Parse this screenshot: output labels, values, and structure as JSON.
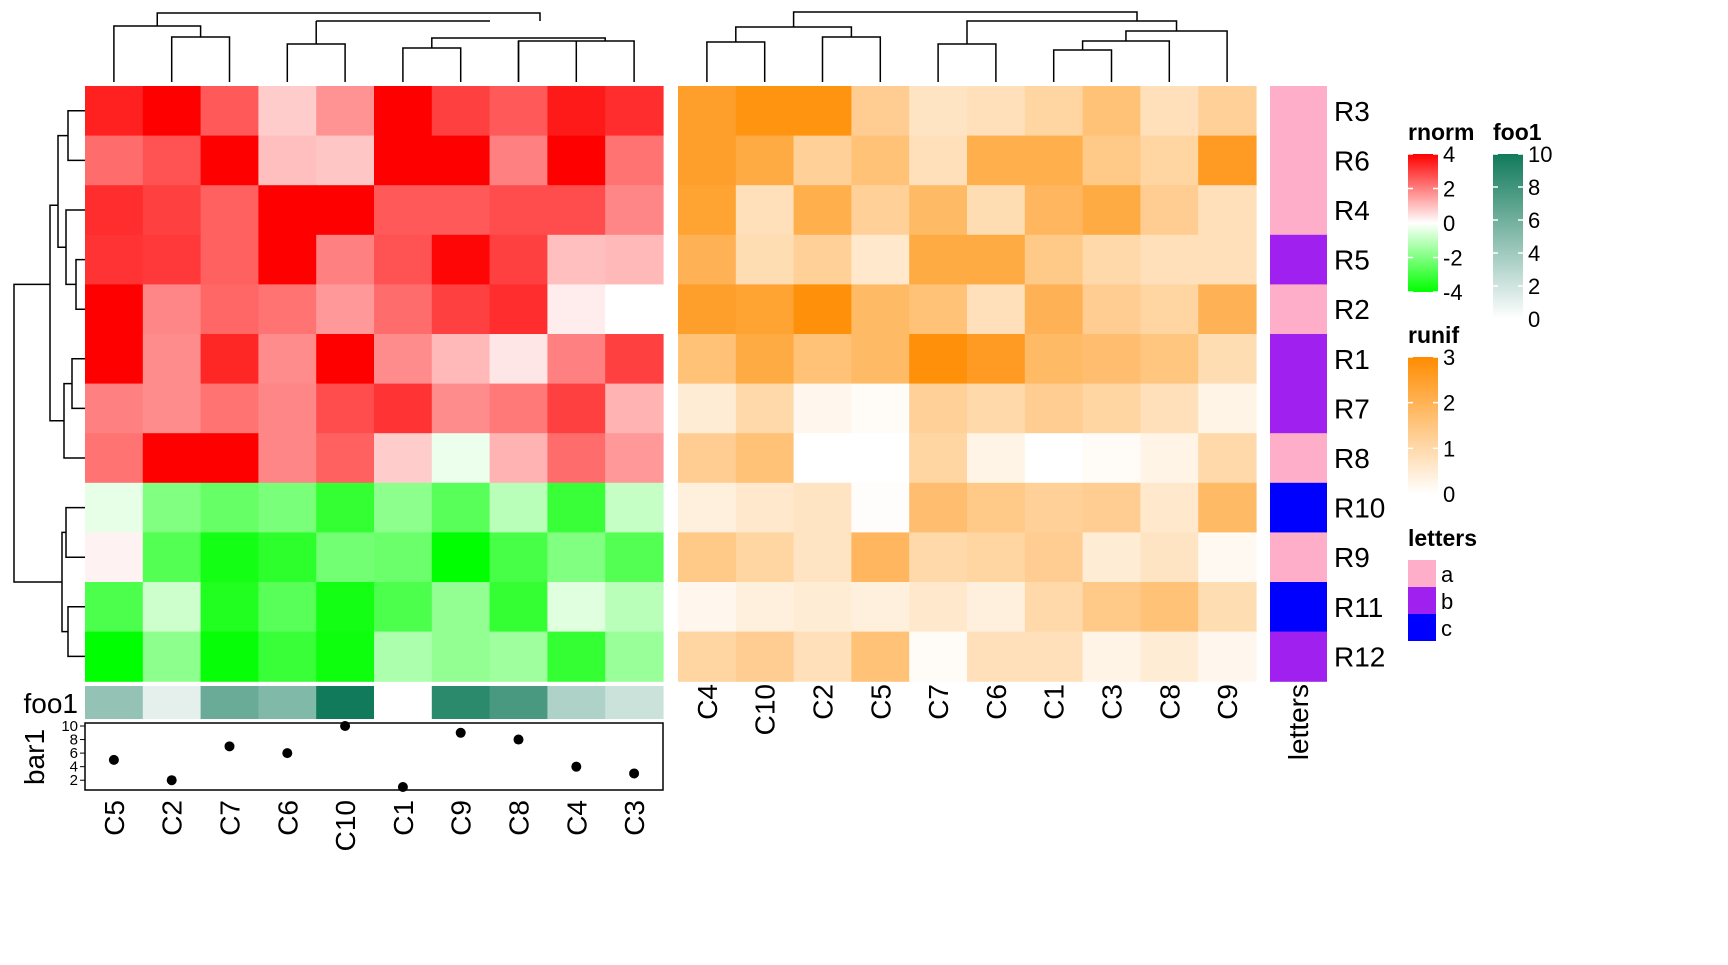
{
  "chart_data": {
    "type": "heatmap",
    "rows": [
      "R3",
      "R6",
      "R4",
      "R5",
      "R2",
      "R1",
      "R7",
      "R8",
      "R10",
      "R9",
      "R11",
      "R12"
    ],
    "heatmaps": [
      {
        "name": "rnorm",
        "columns": [
          "C5",
          "C2",
          "C7",
          "C6",
          "C10",
          "C1",
          "C9",
          "C8",
          "C4",
          "C3"
        ],
        "values": [
          [
            3.5,
            4.0,
            2.6,
            0.8,
            1.7,
            4.0,
            3.0,
            2.6,
            3.6,
            3.3
          ],
          [
            2.3,
            2.7,
            4.0,
            1.0,
            0.9,
            4.0,
            4.0,
            2.0,
            4.0,
            2.2
          ],
          [
            3.3,
            3.0,
            2.5,
            4.0,
            4.0,
            2.6,
            2.6,
            2.8,
            2.8,
            1.9
          ],
          [
            3.2,
            3.1,
            2.5,
            4.0,
            2.0,
            2.7,
            3.9,
            3.0,
            1.0,
            1.1
          ],
          [
            4.0,
            1.9,
            2.4,
            2.2,
            1.6,
            2.3,
            3.0,
            3.3,
            0.3,
            0.0
          ],
          [
            4.0,
            1.8,
            3.4,
            1.8,
            4.0,
            1.8,
            1.1,
            0.4,
            2.0,
            3.0
          ],
          [
            2.0,
            1.8,
            2.2,
            1.9,
            2.8,
            3.2,
            1.8,
            2.1,
            3.0,
            1.2
          ],
          [
            2.2,
            4.0,
            4.0,
            1.9,
            2.5,
            0.8,
            -0.3,
            1.2,
            2.3,
            1.6
          ],
          [
            -0.4,
            -2.0,
            -2.4,
            -2.1,
            -3.2,
            -1.8,
            -2.6,
            -1.1,
            -3.1,
            -0.9
          ],
          [
            0.2,
            -2.7,
            -3.7,
            -3.3,
            -2.2,
            -2.3,
            -4.0,
            -2.9,
            -2.0,
            -2.7
          ],
          [
            -2.8,
            -0.8,
            -3.5,
            -2.6,
            -3.7,
            -2.8,
            -1.7,
            -3.2,
            -0.5,
            -1.1
          ],
          [
            -4.0,
            -1.8,
            -3.9,
            -3.1,
            -3.8,
            -1.3,
            -1.7,
            -1.5,
            -3.2,
            -1.6
          ]
        ]
      },
      {
        "name": "runif",
        "columns": [
          "C4",
          "C10",
          "C2",
          "C5",
          "C7",
          "C6",
          "C1",
          "C3",
          "C8",
          "C9"
        ],
        "values": [
          [
            2.5,
            2.8,
            2.8,
            1.3,
            0.7,
            0.8,
            1.1,
            1.6,
            0.8,
            1.2
          ],
          [
            2.5,
            2.2,
            1.2,
            1.6,
            0.8,
            2.1,
            2.1,
            1.4,
            1.1,
            2.6
          ],
          [
            2.4,
            0.8,
            2.1,
            1.2,
            1.8,
            0.9,
            1.9,
            2.2,
            1.3,
            0.8
          ],
          [
            2.0,
            0.9,
            1.2,
            0.6,
            2.2,
            2.2,
            1.4,
            1.0,
            0.8,
            0.8
          ],
          [
            2.5,
            2.4,
            2.9,
            1.8,
            1.6,
            0.8,
            2.0,
            1.3,
            1.1,
            2.0
          ],
          [
            1.6,
            2.2,
            1.6,
            1.8,
            2.9,
            2.6,
            1.8,
            1.7,
            1.5,
            0.9
          ],
          [
            0.5,
            1.0,
            0.2,
            0.1,
            1.2,
            1.0,
            1.3,
            1.1,
            0.8,
            0.3
          ],
          [
            1.3,
            1.6,
            0.0,
            0.0,
            1.1,
            0.3,
            0.0,
            0.1,
            0.3,
            1.0
          ],
          [
            0.4,
            0.6,
            0.7,
            0.05,
            1.7,
            1.4,
            1.2,
            1.3,
            0.6,
            1.8
          ],
          [
            1.4,
            1.1,
            0.7,
            1.9,
            1.0,
            1.1,
            1.3,
            0.5,
            0.7,
            0.15
          ],
          [
            0.2,
            0.4,
            0.5,
            0.4,
            0.6,
            0.4,
            1.0,
            1.4,
            1.6,
            0.9
          ],
          [
            1.1,
            1.3,
            0.8,
            1.6,
            0.1,
            0.8,
            0.8,
            0.3,
            0.5,
            0.2
          ]
        ]
      }
    ],
    "row_annotation": {
      "name": "letters",
      "values": [
        "a",
        "a",
        "a",
        "b",
        "a",
        "b",
        "b",
        "a",
        "c",
        "a",
        "c",
        "b"
      ],
      "colors": {
        "a": "#ffaec9",
        "b": "#a020f0",
        "c": "#0000ff"
      }
    },
    "column_annotations": {
      "columns": [
        "C5",
        "C2",
        "C7",
        "C6",
        "C10",
        "C1",
        "C9",
        "C8",
        "C4",
        "C3"
      ],
      "foo1": [
        4.5,
        1.1,
        6.3,
        5.3,
        10.0,
        0.0,
        8.9,
        7.7,
        3.4,
        2.2
      ],
      "bar1": [
        5,
        2,
        7,
        6,
        10,
        1,
        9,
        8,
        4,
        3
      ],
      "bar1_ylim": [
        1,
        10
      ],
      "bar1_ticks": [
        "2",
        "4",
        "6",
        "8",
        "10"
      ]
    },
    "legends": [
      {
        "title": "rnorm",
        "ticks": [
          "4",
          "2",
          "0",
          "-2",
          "-4"
        ],
        "colors": [
          "#ff0000",
          "#ffffff",
          "#00ff00"
        ],
        "range": [
          -4,
          4
        ]
      },
      {
        "title": "foo1",
        "ticks": [
          "10",
          "8",
          "6",
          "4",
          "2",
          "0"
        ],
        "colors": [
          "#ffffff",
          "#117a5a"
        ],
        "range": [
          0,
          10
        ]
      },
      {
        "title": "runif",
        "ticks": [
          "3",
          "2",
          "1",
          "0"
        ],
        "colors": [
          "#ffffff",
          "#ff8c00"
        ],
        "range": [
          0,
          3
        ]
      },
      {
        "title": "letters",
        "ticks": [
          "a",
          "b",
          "c"
        ],
        "colors": [
          "#ffaec9",
          "#a020f0",
          "#0000ff"
        ]
      }
    ],
    "labels": {
      "foo1": "foo1",
      "bar1": "bar1",
      "letters": "letters"
    }
  }
}
